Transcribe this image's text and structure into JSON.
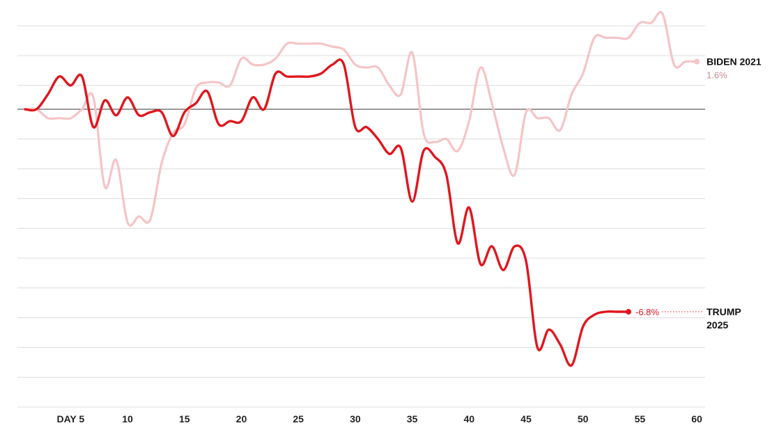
{
  "chart_data": {
    "type": "line",
    "xlim": [
      1,
      60
    ],
    "ylim": [
      -10,
      3.4
    ],
    "y_gridlines": [
      2.8,
      1.8,
      0.8,
      0,
      -1,
      -2,
      -3,
      -4,
      -5,
      -6,
      -7,
      -8,
      -9,
      -10
    ],
    "x_ticks": [
      {
        "x": 5,
        "label": "DAY 5"
      },
      {
        "x": 10,
        "label": "10"
      },
      {
        "x": 15,
        "label": "15"
      },
      {
        "x": 20,
        "label": "20"
      },
      {
        "x": 25,
        "label": "25"
      },
      {
        "x": 30,
        "label": "30"
      },
      {
        "x": 35,
        "label": "35"
      },
      {
        "x": 40,
        "label": "40"
      },
      {
        "x": 45,
        "label": "45"
      },
      {
        "x": 50,
        "label": "50"
      },
      {
        "x": 55,
        "label": "55"
      },
      {
        "x": 60,
        "label": "60"
      }
    ],
    "series": [
      {
        "name": "BIDEN 2021",
        "end_label": "1.6%",
        "color": "#f5c4c6",
        "values": [
          [
            1,
            0
          ],
          [
            2,
            0
          ],
          [
            3,
            -0.3
          ],
          [
            4,
            -0.3
          ],
          [
            5,
            -0.3
          ],
          [
            6,
            0
          ],
          [
            7,
            0.4
          ],
          [
            8,
            -2.6
          ],
          [
            9,
            -1.7
          ],
          [
            10,
            -3.8
          ],
          [
            11,
            -3.6
          ],
          [
            12,
            -3.7
          ],
          [
            13,
            -1.8
          ],
          [
            14,
            -0.8
          ],
          [
            15,
            -0.5
          ],
          [
            16,
            0.7
          ],
          [
            17,
            0.9
          ],
          [
            18,
            0.9
          ],
          [
            19,
            0.8
          ],
          [
            20,
            1.7
          ],
          [
            21,
            1.5
          ],
          [
            22,
            1.5
          ],
          [
            23,
            1.7
          ],
          [
            24,
            2.2
          ],
          [
            25,
            2.2
          ],
          [
            26,
            2.2
          ],
          [
            27,
            2.2
          ],
          [
            28,
            2.1
          ],
          [
            29,
            2.0
          ],
          [
            30,
            1.5
          ],
          [
            31,
            1.4
          ],
          [
            32,
            1.4
          ],
          [
            33,
            0.8
          ],
          [
            34,
            0.5
          ],
          [
            35,
            1.9
          ],
          [
            36,
            -0.8
          ],
          [
            37,
            -1.1
          ],
          [
            38,
            -1.0
          ],
          [
            39,
            -1.4
          ],
          [
            40,
            -0.4
          ],
          [
            41,
            1.4
          ],
          [
            42,
            0.2
          ],
          [
            43,
            -1.3
          ],
          [
            44,
            -2.2
          ],
          [
            45,
            -0.1
          ],
          [
            46,
            -0.3
          ],
          [
            47,
            -0.3
          ],
          [
            48,
            -0.7
          ],
          [
            49,
            0.5
          ],
          [
            50,
            1.2
          ],
          [
            51,
            2.4
          ],
          [
            52,
            2.4
          ],
          [
            53,
            2.4
          ],
          [
            54,
            2.4
          ],
          [
            55,
            2.9
          ],
          [
            56,
            2.9
          ],
          [
            57,
            3.2
          ],
          [
            58,
            1.5
          ],
          [
            59,
            1.6
          ],
          [
            60,
            1.6
          ]
        ]
      },
      {
        "name": "TRUMP 2025",
        "end_label": "-6.8%",
        "color": "#e0161e",
        "values": [
          [
            1,
            0
          ],
          [
            2,
            0
          ],
          [
            3,
            0.5
          ],
          [
            4,
            1.1
          ],
          [
            5,
            0.8
          ],
          [
            6,
            1.1
          ],
          [
            7,
            -0.6
          ],
          [
            8,
            0.3
          ],
          [
            9,
            -0.2
          ],
          [
            10,
            0.4
          ],
          [
            11,
            -0.2
          ],
          [
            12,
            -0.1
          ],
          [
            13,
            -0.1
          ],
          [
            14,
            -0.9
          ],
          [
            15,
            -0.1
          ],
          [
            16,
            0.2
          ],
          [
            17,
            0.6
          ],
          [
            18,
            -0.5
          ],
          [
            19,
            -0.4
          ],
          [
            20,
            -0.4
          ],
          [
            21,
            0.4
          ],
          [
            22,
            0
          ],
          [
            23,
            1.2
          ],
          [
            24,
            1.1
          ],
          [
            25,
            1.1
          ],
          [
            26,
            1.1
          ],
          [
            27,
            1.2
          ],
          [
            28,
            1.5
          ],
          [
            29,
            1.5
          ],
          [
            30,
            -0.6
          ],
          [
            31,
            -0.6
          ],
          [
            32,
            -1.0
          ],
          [
            33,
            -1.5
          ],
          [
            34,
            -1.3
          ],
          [
            35,
            -3.1
          ],
          [
            36,
            -1.4
          ],
          [
            37,
            -1.6
          ],
          [
            38,
            -2.2
          ],
          [
            39,
            -4.5
          ],
          [
            40,
            -3.3
          ],
          [
            41,
            -5.2
          ],
          [
            42,
            -4.6
          ],
          [
            43,
            -5.4
          ],
          [
            44,
            -4.6
          ],
          [
            45,
            -5.1
          ],
          [
            46,
            -8.0
          ],
          [
            47,
            -7.4
          ],
          [
            48,
            -7.9
          ],
          [
            49,
            -8.6
          ],
          [
            50,
            -7.3
          ],
          [
            51,
            -6.9
          ],
          [
            52,
            -6.8
          ],
          [
            53,
            -6.8
          ],
          [
            54,
            -6.8
          ]
        ]
      }
    ]
  }
}
